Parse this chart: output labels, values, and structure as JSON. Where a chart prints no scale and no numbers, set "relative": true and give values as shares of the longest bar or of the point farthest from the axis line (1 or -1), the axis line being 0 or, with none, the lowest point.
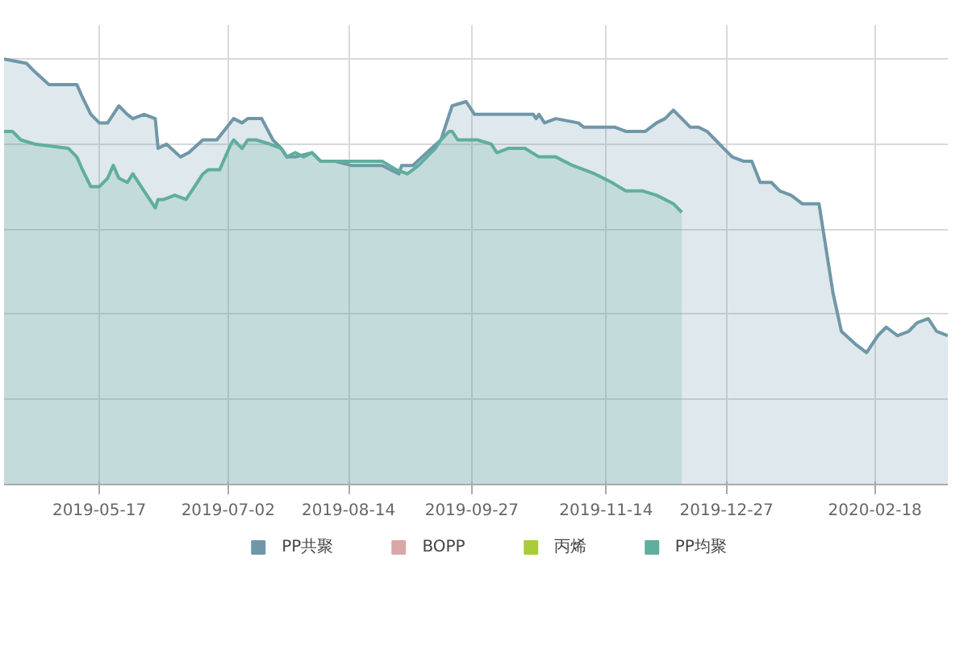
{
  "chart_data": {
    "type": "area",
    "relative": true,
    "grid": true,
    "legend": "bottom",
    "marker": "none",
    "line_style": "solid",
    "xlim": [
      "2019-04-13",
      "2020-03-15"
    ],
    "xticks": [
      {
        "value": "2019-05-17",
        "label": "2019-05-17"
      },
      {
        "value": "2019-07-02",
        "label": "2019-07-02"
      },
      {
        "value": "2019-08-14",
        "label": "2019-08-14"
      },
      {
        "value": "2019-09-27",
        "label": "2019-09-27"
      },
      {
        "value": "2019-11-14",
        "label": "2019-11-14"
      },
      {
        "value": "2019-12-27",
        "label": "2019-12-27"
      },
      {
        "value": "2020-02-18",
        "label": "2020-02-18"
      }
    ],
    "series": [
      {
        "name": "PP共聚",
        "color": "#6f97a8",
        "x": [
          "2019-04-13",
          "2019-04-21",
          "2019-04-24",
          "2019-04-29",
          "2019-05-02",
          "2019-05-09",
          "2019-05-11",
          "2019-05-14",
          "2019-05-17",
          "2019-05-20",
          "2019-05-22",
          "2019-05-24",
          "2019-05-27",
          "2019-05-29",
          "2019-06-02",
          "2019-06-06",
          "2019-06-07",
          "2019-06-10",
          "2019-06-15",
          "2019-06-18",
          "2019-06-23",
          "2019-06-28",
          "2019-07-04",
          "2019-07-07",
          "2019-07-09",
          "2019-07-14",
          "2019-07-18",
          "2019-07-21",
          "2019-07-23",
          "2019-07-26",
          "2019-08-01",
          "2019-08-04",
          "2019-08-09",
          "2019-08-15",
          "2019-08-26",
          "2019-09-01",
          "2019-09-02",
          "2019-09-06",
          "2019-09-11",
          "2019-09-16",
          "2019-09-20",
          "2019-09-25",
          "2019-09-28",
          "2019-10-02",
          "2019-10-07",
          "2019-10-19",
          "2019-10-20",
          "2019-10-21",
          "2019-10-23",
          "2019-10-27",
          "2019-11-04",
          "2019-11-06",
          "2019-11-17",
          "2019-11-21",
          "2019-11-28",
          "2019-12-02",
          "2019-12-05",
          "2019-12-08",
          "2019-12-11",
          "2019-12-14",
          "2019-12-17",
          "2019-12-20",
          "2019-12-23",
          "2019-12-26",
          "2019-12-29",
          "2020-01-02",
          "2020-01-05",
          "2020-01-08",
          "2020-01-12",
          "2020-01-15",
          "2020-01-19",
          "2020-01-23",
          "2020-01-29",
          "2020-02-03",
          "2020-02-06",
          "2020-02-11",
          "2020-02-15",
          "2020-02-19",
          "2020-02-22",
          "2020-02-26",
          "2020-03-01",
          "2020-03-04",
          "2020-03-08",
          "2020-03-11",
          "2020-03-15"
        ],
        "values": [
          1.0,
          0.99,
          0.97,
          0.94,
          0.94,
          0.94,
          0.91,
          0.87,
          0.85,
          0.85,
          0.87,
          0.89,
          0.87,
          0.86,
          0.87,
          0.86,
          0.79,
          0.8,
          0.77,
          0.78,
          0.81,
          0.81,
          0.86,
          0.85,
          0.86,
          0.86,
          0.81,
          0.79,
          0.77,
          0.77,
          0.78,
          0.76,
          0.76,
          0.75,
          0.75,
          0.73,
          0.75,
          0.75,
          0.78,
          0.81,
          0.89,
          0.9,
          0.87,
          0.87,
          0.87,
          0.87,
          0.86,
          0.87,
          0.85,
          0.86,
          0.85,
          0.84,
          0.84,
          0.83,
          0.83,
          0.85,
          0.86,
          0.88,
          0.86,
          0.84,
          0.84,
          0.83,
          0.81,
          0.79,
          0.77,
          0.76,
          0.76,
          0.71,
          0.71,
          0.69,
          0.68,
          0.66,
          0.66,
          0.45,
          0.36,
          0.33,
          0.31,
          0.35,
          0.37,
          0.35,
          0.36,
          0.38,
          0.39,
          0.36,
          0.35
        ]
      },
      {
        "name": "BOPP",
        "color": "#d9a7a7"
      },
      {
        "name": "丙烯",
        "color": "#a8cc3a"
      },
      {
        "name": "PP均聚",
        "color": "#5fae9e",
        "x": [
          "2019-04-13",
          "2019-04-16",
          "2019-04-19",
          "2019-04-24",
          "2019-05-06",
          "2019-05-09",
          "2019-05-11",
          "2019-05-14",
          "2019-05-17",
          "2019-05-20",
          "2019-05-22",
          "2019-05-24",
          "2019-05-27",
          "2019-05-29",
          "2019-06-02",
          "2019-06-04",
          "2019-06-06",
          "2019-06-07",
          "2019-06-09",
          "2019-06-13",
          "2019-06-17",
          "2019-06-20",
          "2019-06-23",
          "2019-06-25",
          "2019-06-29",
          "2019-07-01",
          "2019-07-03",
          "2019-07-04",
          "2019-07-07",
          "2019-07-09",
          "2019-07-12",
          "2019-07-17",
          "2019-07-21",
          "2019-07-23",
          "2019-07-26",
          "2019-07-29",
          "2019-08-01",
          "2019-08-04",
          "2019-08-08",
          "2019-08-12",
          "2019-08-18",
          "2019-08-22",
          "2019-08-26",
          "2019-08-31",
          "2019-09-04",
          "2019-09-08",
          "2019-09-11",
          "2019-09-14",
          "2019-09-16",
          "2019-09-19",
          "2019-09-20",
          "2019-09-22",
          "2019-09-25",
          "2019-09-29",
          "2019-10-04",
          "2019-10-06",
          "2019-10-10",
          "2019-10-16",
          "2019-10-21",
          "2019-10-27",
          "2019-11-02",
          "2019-11-06",
          "2019-11-10",
          "2019-11-16",
          "2019-11-21",
          "2019-11-27",
          "2019-12-02",
          "2019-12-08",
          "2019-12-11"
        ],
        "values": [
          0.83,
          0.83,
          0.81,
          0.8,
          0.79,
          0.77,
          0.74,
          0.7,
          0.7,
          0.72,
          0.75,
          0.72,
          0.71,
          0.73,
          0.69,
          0.67,
          0.65,
          0.67,
          0.67,
          0.68,
          0.67,
          0.7,
          0.73,
          0.74,
          0.74,
          0.77,
          0.8,
          0.81,
          0.79,
          0.81,
          0.81,
          0.8,
          0.79,
          0.77,
          0.78,
          0.77,
          0.78,
          0.76,
          0.76,
          0.76,
          0.76,
          0.76,
          0.76,
          0.74,
          0.73,
          0.75,
          0.77,
          0.79,
          0.81,
          0.83,
          0.83,
          0.81,
          0.81,
          0.81,
          0.8,
          0.78,
          0.79,
          0.79,
          0.77,
          0.77,
          0.75,
          0.74,
          0.73,
          0.71,
          0.69,
          0.69,
          0.68,
          0.66,
          0.64
        ]
      }
    ]
  }
}
